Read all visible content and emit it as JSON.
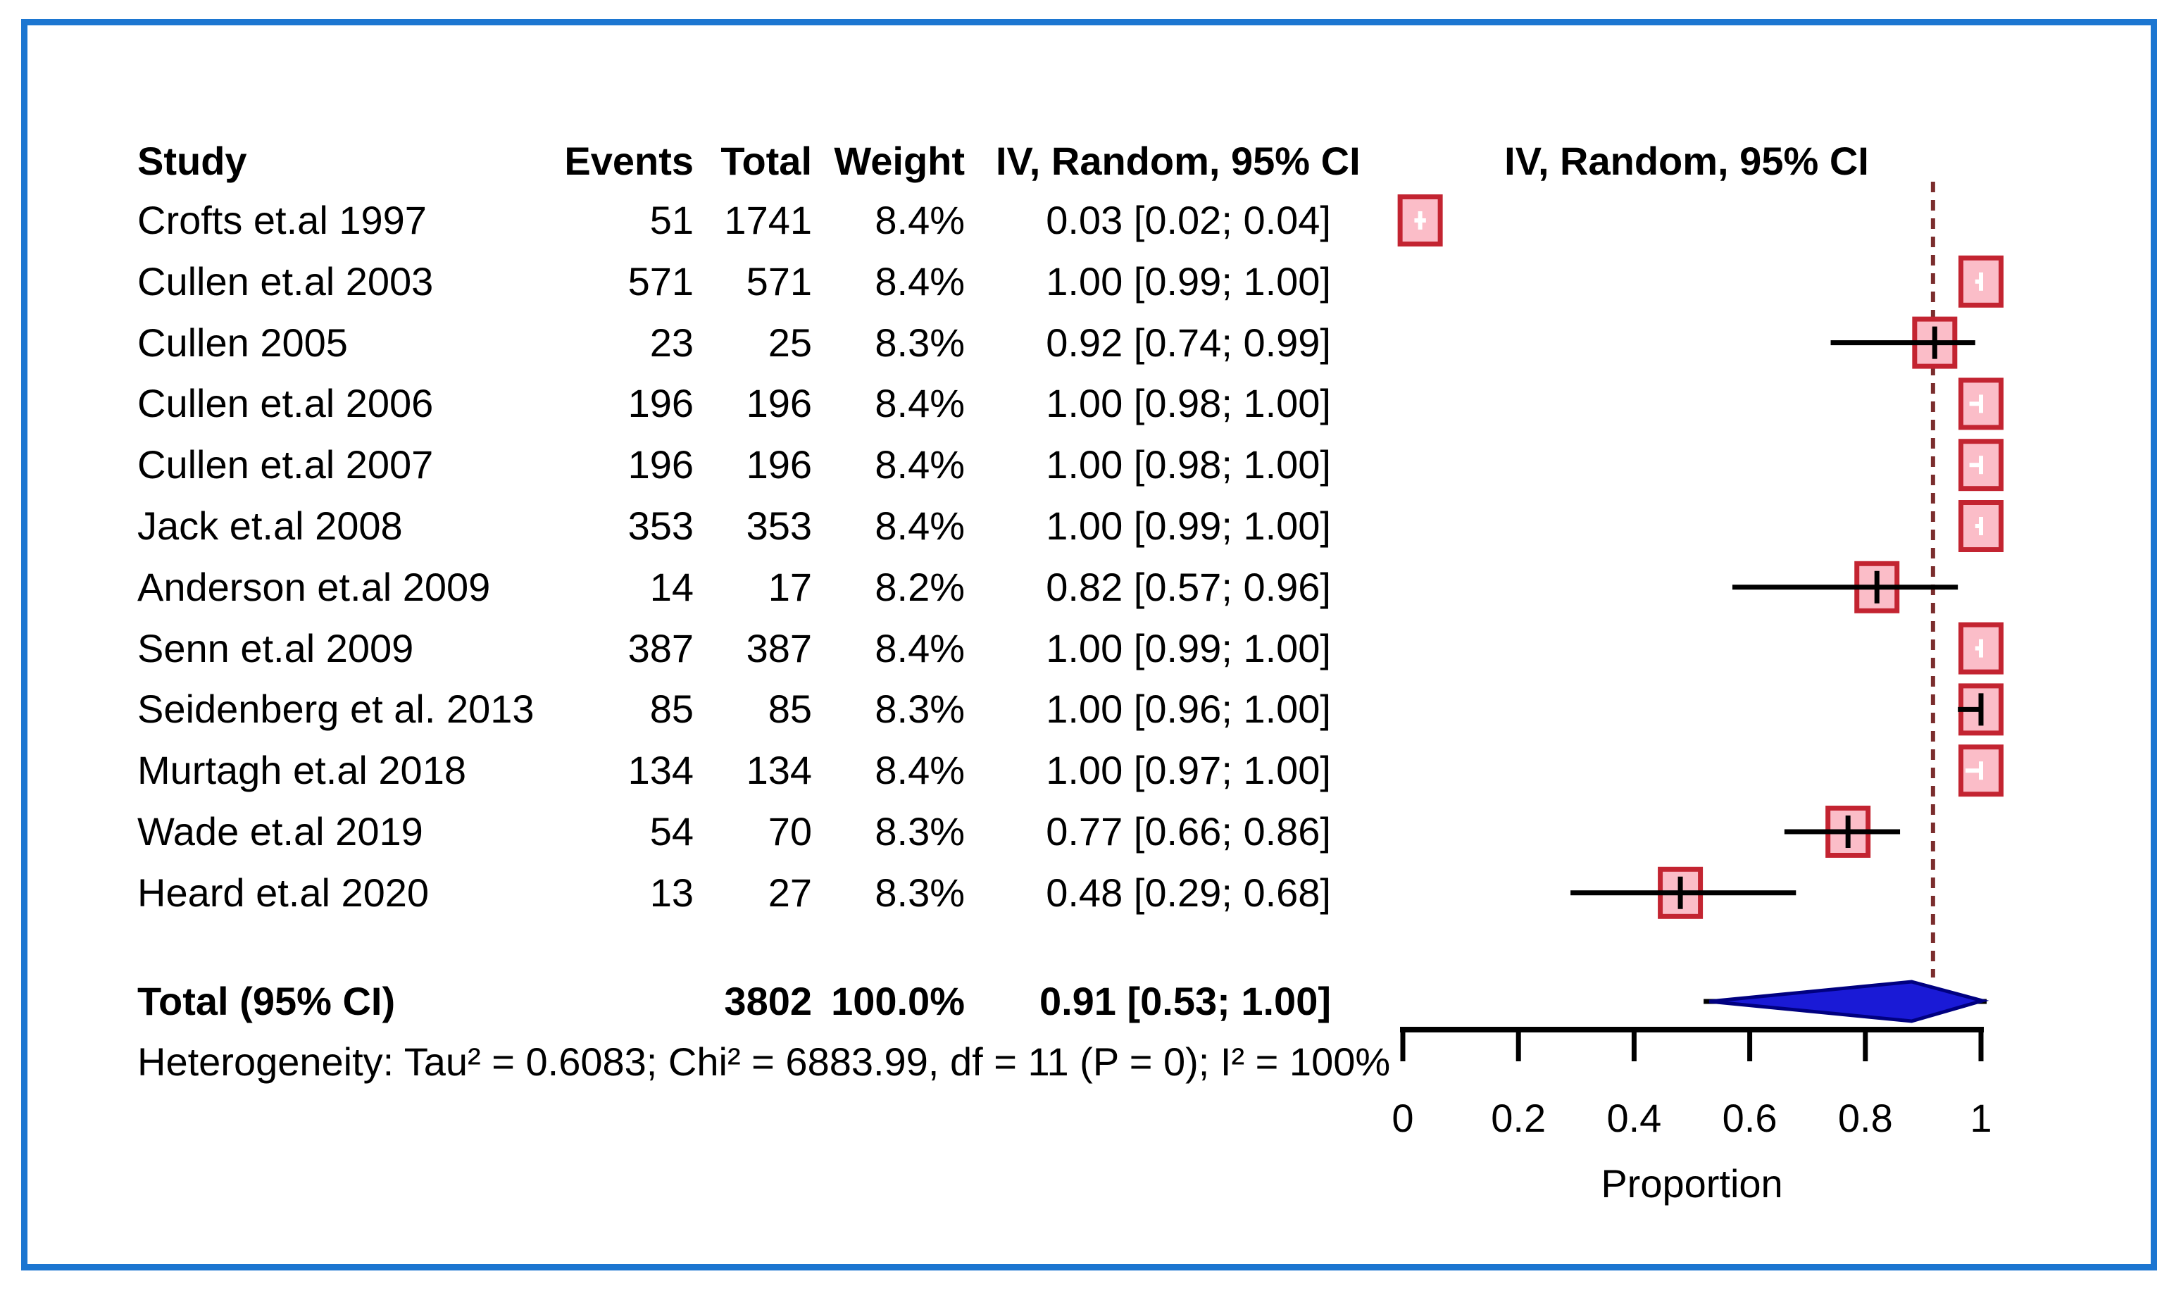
{
  "window": {
    "border_color": "#1c76d1",
    "background": "#ffffff"
  },
  "table": {
    "col_headers": {
      "study": "Study",
      "events": "Events",
      "total": "Total",
      "weight": "Weight",
      "effect": "IV, Random, 95% CI"
    },
    "plot_col_header": "IV, Random, 95% CI",
    "rows": [
      {
        "study": "Crofts et.al 1997",
        "events": "51",
        "total": "1741",
        "weight": "8.4%",
        "effect": "0.03 [0.02; 0.04]"
      },
      {
        "study": "Cullen et.al 2003",
        "events": "571",
        "total": "571",
        "weight": "8.4%",
        "effect": "1.00 [0.99; 1.00]"
      },
      {
        "study": "Cullen 2005",
        "events": "23",
        "total": "25",
        "weight": "8.3%",
        "effect": "0.92 [0.74; 0.99]"
      },
      {
        "study": "Cullen et.al 2006",
        "events": "196",
        "total": "196",
        "weight": "8.4%",
        "effect": "1.00 [0.98; 1.00]"
      },
      {
        "study": "Cullen et.al 2007",
        "events": "196",
        "total": "196",
        "weight": "8.4%",
        "effect": "1.00 [0.98; 1.00]"
      },
      {
        "study": "Jack et.al 2008",
        "events": "353",
        "total": "353",
        "weight": "8.4%",
        "effect": "1.00 [0.99; 1.00]"
      },
      {
        "study": "Anderson et.al 2009",
        "events": "14",
        "total": "17",
        "weight": "8.2%",
        "effect": "0.82 [0.57; 0.96]"
      },
      {
        "study": "Senn et.al 2009",
        "events": "387",
        "total": "387",
        "weight": "8.4%",
        "effect": "1.00 [0.99; 1.00]"
      },
      {
        "study": "Seidenberg et al. 2013",
        "events": "85",
        "total": "85",
        "weight": "8.3%",
        "effect": "1.00 [0.96; 1.00]"
      },
      {
        "study": "Murtagh et.al 2018",
        "events": "134",
        "total": "134",
        "weight": "8.4%",
        "effect": "1.00 [0.97; 1.00]"
      },
      {
        "study": "Wade et.al 2019",
        "events": "54",
        "total": "70",
        "weight": "8.3%",
        "effect": "0.77 [0.66; 0.86]"
      },
      {
        "study": "Heard et.al 2020",
        "events": "13",
        "total": "27",
        "weight": "8.3%",
        "effect": "0.48 [0.29; 0.68]"
      }
    ],
    "total_row": {
      "label": "Total (95% CI)",
      "total": "3802",
      "weight": "100.0%",
      "effect": "0.91 [0.53; 1.00]"
    },
    "heterogeneity": "Heterogeneity: Tau² = 0.6083; Chi² = 6883.99, df = 11 (P = 0); I² = 100%"
  },
  "axis": {
    "tick_labels": [
      "0",
      "0.2",
      "0.4",
      "0.6",
      "0.8",
      "1"
    ],
    "xlabel": "Proportion"
  },
  "chart_data": {
    "type": "forest",
    "effect_label": "IV, Random, 95% CI",
    "studies": [
      "Crofts et.al 1997",
      "Cullen et.al 2003",
      "Cullen 2005",
      "Cullen et.al 2006",
      "Cullen et.al 2007",
      "Jack et.al 2008",
      "Anderson et.al 2009",
      "Senn et.al 2009",
      "Seidenberg et al. 2013",
      "Murtagh et.al 2018",
      "Wade et.al 2019",
      "Heard et.al 2020"
    ],
    "events": [
      51,
      571,
      23,
      196,
      196,
      353,
      14,
      387,
      85,
      134,
      54,
      13
    ],
    "totals": [
      1741,
      571,
      25,
      196,
      196,
      353,
      17,
      387,
      85,
      134,
      70,
      27
    ],
    "weights": [
      "8.4%",
      "8.4%",
      "8.3%",
      "8.4%",
      "8.4%",
      "8.4%",
      "8.2%",
      "8.4%",
      "8.3%",
      "8.4%",
      "8.3%",
      "8.3%"
    ],
    "estimates": [
      0.03,
      1.0,
      0.92,
      1.0,
      1.0,
      1.0,
      0.82,
      1.0,
      1.0,
      1.0,
      0.77,
      0.48
    ],
    "ci_lower": [
      0.02,
      0.99,
      0.74,
      0.98,
      0.98,
      0.99,
      0.57,
      0.99,
      0.96,
      0.97,
      0.66,
      0.29
    ],
    "ci_upper": [
      0.04,
      1.0,
      0.99,
      1.0,
      1.0,
      1.0,
      0.96,
      1.0,
      1.0,
      1.0,
      0.86,
      0.68
    ],
    "pooled": {
      "label": "Total (95% CI)",
      "total": 3802,
      "weight": "100.0%",
      "estimate": 0.91,
      "ci_lower": 0.53,
      "ci_upper": 1.0
    },
    "heterogeneity": {
      "tau2": 0.6083,
      "chi2": 6883.99,
      "df": 11,
      "p": "0",
      "i2": "100%"
    },
    "xlabel": "Proportion",
    "xlim": [
      0,
      1
    ],
    "xticks": [
      0,
      0.2,
      0.4,
      0.6,
      0.8,
      1
    ],
    "reference_line": 0.917,
    "legend_position": "none",
    "grid": false,
    "colors": {
      "square_fill": "#fbbdc8",
      "square_border": "#c32431",
      "ci_line": "#000000",
      "diamond_fill": "#1a1ad6",
      "diamond_border": "#000080",
      "dashed_line": "#7b2d2d",
      "axis": "#000000"
    }
  }
}
